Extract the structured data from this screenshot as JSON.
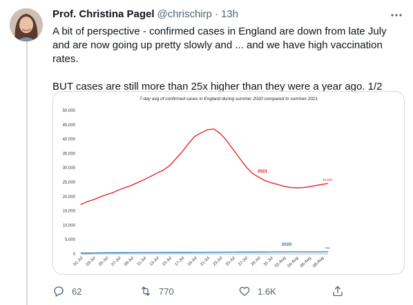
{
  "tweet": {
    "name": "Prof. Christina Pagel",
    "handle": "@chrischirp",
    "separator": "·",
    "time": "13h",
    "text_paragraph_1": "A bit of perspective - confirmed cases in England are down from late July and are now going up pretty slowly and ... and we have high vaccination rates.",
    "text_paragraph_2": "BUT cases are still more than 25x higher than they were a year ago. 1/2"
  },
  "actions": {
    "reply_count": "62",
    "retweet_count": "770",
    "like_count": "1.6K"
  },
  "icons": {
    "more": "more-dots-icon",
    "reply": "reply-icon",
    "retweet": "retweet-icon",
    "like": "heart-icon",
    "share": "share-icon"
  },
  "colors": {
    "series_2021": "#e8121c",
    "series_2020": "#1f77b4",
    "muted_text": "#536471"
  },
  "chart_data": {
    "type": "line",
    "title": "7-day avg of confirmed cases in England during summer 2020 compared to summer 2021",
    "xlabel": "",
    "ylabel": "",
    "ylim": [
      0,
      50000
    ],
    "y_ticks": [
      "0",
      "5,000",
      "10,000",
      "15,000",
      "20,000",
      "25,000",
      "30,000",
      "35,000",
      "40,000",
      "45,000",
      "50,000"
    ],
    "x_tick_labels": [
      "01-Jul",
      "03-Jul",
      "05-Jul",
      "07-Jul",
      "09-Jul",
      "11-Jul",
      "13-Jul",
      "15-Jul",
      "17-Jul",
      "19-Jul",
      "21-Jul",
      "23-Jul",
      "25-Jul",
      "27-Jul",
      "29-Jul",
      "31-Jul",
      "02-Aug",
      "04-Aug",
      "06-Aug",
      "08-Aug"
    ],
    "x_days": [
      "01-Jul",
      "02-Jul",
      "03-Jul",
      "04-Jul",
      "05-Jul",
      "06-Jul",
      "07-Jul",
      "08-Jul",
      "09-Jul",
      "10-Jul",
      "11-Jul",
      "12-Jul",
      "13-Jul",
      "14-Jul",
      "15-Jul",
      "16-Jul",
      "17-Jul",
      "18-Jul",
      "19-Jul",
      "20-Jul",
      "21-Jul",
      "22-Jul",
      "23-Jul",
      "24-Jul",
      "25-Jul",
      "26-Jul",
      "27-Jul",
      "28-Jul",
      "29-Jul",
      "30-Jul",
      "31-Jul",
      "01-Aug",
      "02-Aug",
      "03-Aug",
      "04-Aug",
      "05-Aug",
      "06-Aug",
      "07-Aug",
      "08-Aug",
      "09-Aug"
    ],
    "grid": false,
    "series": [
      {
        "name": "2021",
        "color": "#e8121c",
        "end_label": "24,536",
        "values": [
          17200,
          18200,
          18900,
          19800,
          20600,
          21300,
          22300,
          23100,
          23900,
          24900,
          25900,
          27000,
          28100,
          29200,
          30700,
          33200,
          35600,
          38500,
          41000,
          42200,
          43300,
          43500,
          42000,
          39500,
          36500,
          33500,
          30500,
          28200,
          26800,
          25600,
          24800,
          24200,
          23600,
          23200,
          23000,
          23100,
          23400,
          23800,
          24200,
          24536
        ]
      },
      {
        "name": "2020",
        "color": "#1f77b4",
        "end_label": "735",
        "values": [
          300,
          320,
          340,
          360,
          380,
          400,
          420,
          440,
          460,
          480,
          490,
          500,
          510,
          520,
          530,
          540,
          550,
          560,
          570,
          580,
          590,
          600,
          610,
          620,
          630,
          640,
          650,
          660,
          670,
          680,
          690,
          700,
          705,
          710,
          715,
          720,
          725,
          730,
          733,
          735
        ]
      }
    ]
  }
}
